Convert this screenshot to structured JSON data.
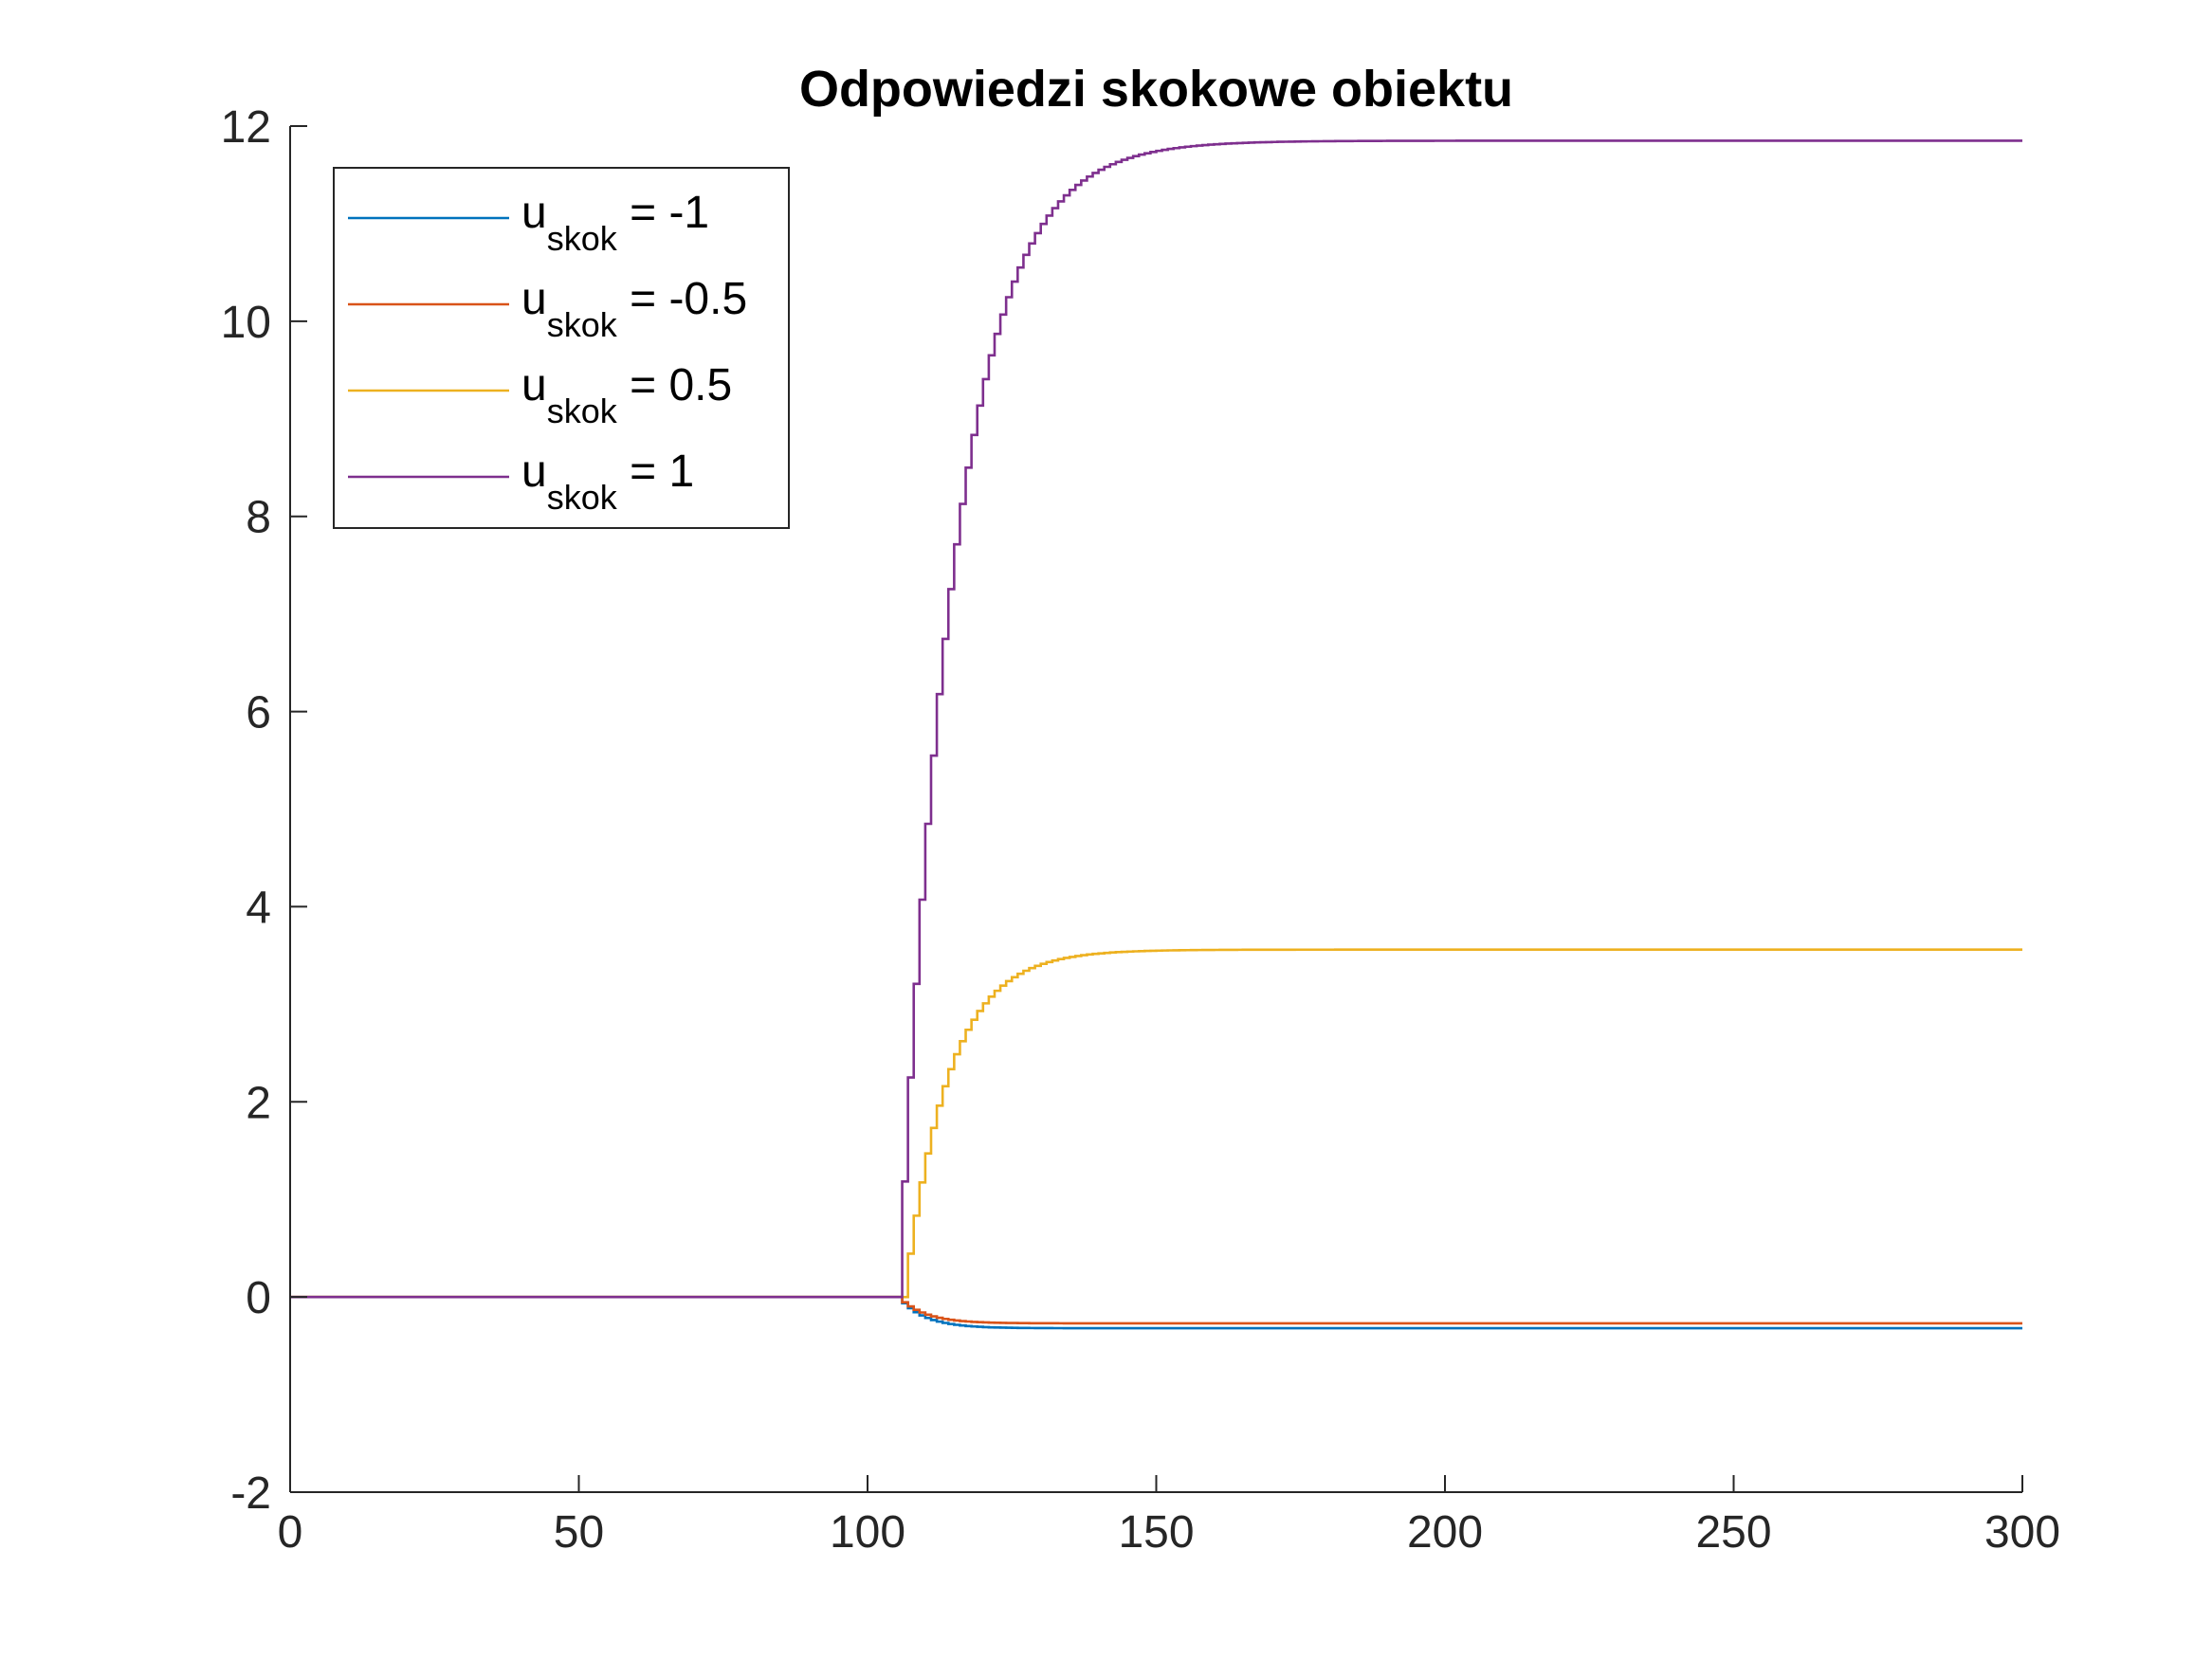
{
  "chart_data": {
    "type": "line",
    "title": "Odpowiedzi skokowe obiektu",
    "xlabel": "",
    "ylabel": "",
    "xlim": [
      0,
      300
    ],
    "ylim": [
      -2,
      12
    ],
    "xticks": [
      0,
      50,
      100,
      150,
      200,
      250,
      300
    ],
    "yticks": [
      -2,
      0,
      2,
      4,
      6,
      8,
      10,
      12
    ],
    "grid": false,
    "legend_position": "top-left",
    "series": [
      {
        "name": "u_skok = -1",
        "label_main": "u",
        "label_sub": "skok",
        "label_rest": " = -1",
        "color": "#0072BD",
        "step_time": 106,
        "delay": 0,
        "final_value": -0.32,
        "time_constant": 4.5
      },
      {
        "name": "u_skok = -0.5",
        "label_main": "u",
        "label_sub": "skok",
        "label_rest": " = -0.5",
        "color": "#D95319",
        "step_time": 106,
        "delay": 0,
        "final_value": -0.27,
        "time_constant": 4.5
      },
      {
        "name": "u_skok = 0.5",
        "label_main": "u",
        "label_sub": "skok",
        "label_rest": " = 0.5",
        "color": "#EDB120",
        "step_time": 106,
        "delay": 1,
        "final_value": 3.56,
        "time_constant": 7.5
      },
      {
        "name": "u_skok = 1",
        "label_main": "u",
        "label_sub": "skok",
        "label_rest": " = 1",
        "color": "#7E2F8E",
        "step_time": 106,
        "delay": 0,
        "final_value": 11.85,
        "time_constant": 9.5
      }
    ]
  }
}
